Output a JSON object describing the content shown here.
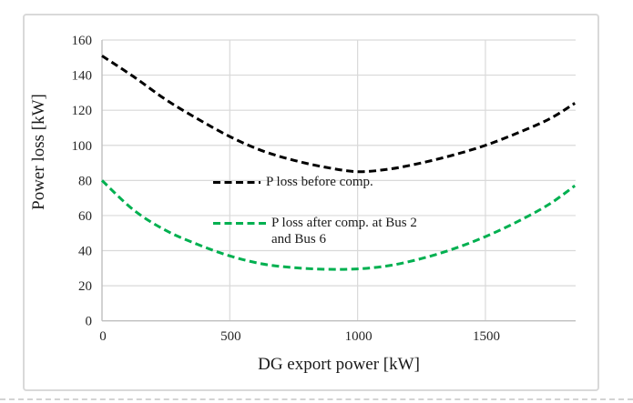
{
  "chart_data": {
    "type": "line",
    "title": "",
    "xlabel": "DG export power [kW]",
    "ylabel": "Power loss [kW]",
    "xlim": [
      0,
      1850
    ],
    "ylim": [
      0,
      160
    ],
    "x_ticks": [
      0,
      500,
      1000,
      1500
    ],
    "y_ticks": [
      0,
      20,
      40,
      60,
      80,
      100,
      120,
      140,
      160
    ],
    "grid": true,
    "legend_position": "inside-plot-center",
    "x": [
      0,
      125,
      250,
      375,
      500,
      625,
      750,
      875,
      1000,
      1125,
      1250,
      1375,
      1500,
      1625,
      1750,
      1850
    ],
    "series": [
      {
        "name": "P loss before comp.",
        "color": "#000000",
        "line_style": "dashed",
        "values": [
          151,
          139,
          126,
          115,
          105,
          97,
          91.5,
          87.5,
          85,
          86.5,
          90,
          94.5,
          100,
          107,
          115,
          124
        ]
      },
      {
        "name": "P loss after comp. at Bus 2 and Bus 6",
        "color": "#00B050",
        "line_style": "dashed",
        "values": [
          80,
          63,
          51.5,
          43.5,
          37,
          32.5,
          30.3,
          29.4,
          29.6,
          31.5,
          35.5,
          41,
          48,
          56.5,
          66.5,
          77
        ]
      }
    ],
    "legend": [
      {
        "color": "#000000",
        "lines": [
          "P loss before comp."
        ]
      },
      {
        "color": "#00B050",
        "lines": [
          "P loss after comp. at Bus 2",
          "and Bus 6"
        ]
      }
    ]
  },
  "colors": {
    "background": "#FFFFFF",
    "frame_border": "#D9D9D9",
    "gridline": "#D9D9D9",
    "axis_line": "#BFBFBF",
    "tick_text": "#262626",
    "title_text": "#1A1A1A",
    "series_before": "#000000",
    "series_after": "#00B050"
  }
}
